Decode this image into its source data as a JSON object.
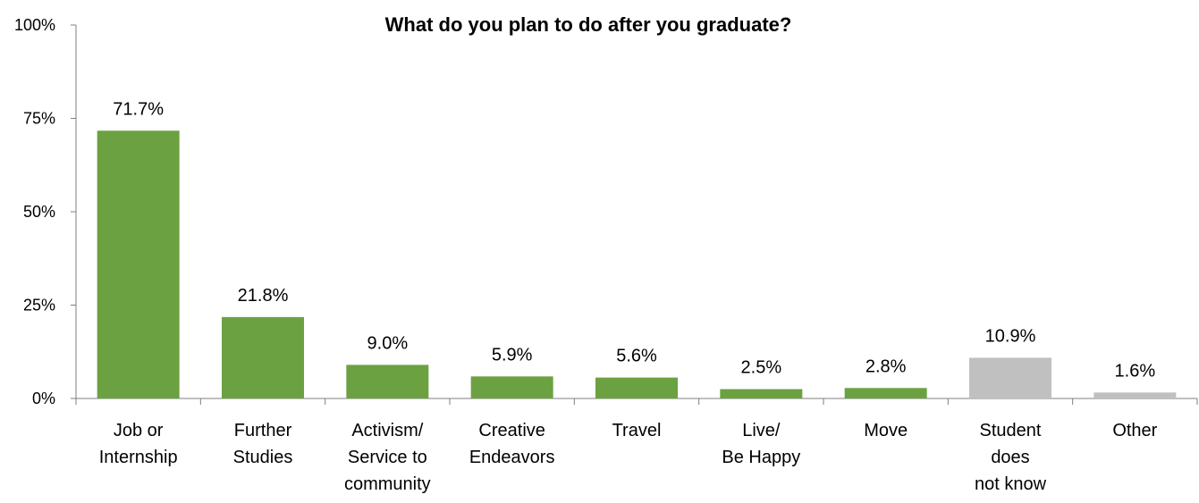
{
  "chart_data": {
    "type": "bar",
    "title": "What do you plan to do after you graduate?",
    "xlabel": "",
    "ylabel": "",
    "ylim": [
      0,
      100
    ],
    "yticks": [
      "0%",
      "25%",
      "50%",
      "75%",
      "100%"
    ],
    "ytick_values": [
      0,
      25,
      50,
      75,
      100
    ],
    "grid": false,
    "legend": "none",
    "colors": {
      "primary": "#6ca142",
      "secondary": "#c0c0c0",
      "axis": "#7f7f7f"
    },
    "categories": [
      [
        "Job or",
        "Internship"
      ],
      [
        "Further",
        "Studies"
      ],
      [
        "Activism/",
        "Service to",
        "community"
      ],
      [
        "Creative",
        "Endeavors"
      ],
      [
        "Travel"
      ],
      [
        "Live/",
        "Be Happy"
      ],
      [
        "Move"
      ],
      [
        "Student",
        "does",
        "not know"
      ],
      [
        "Other"
      ]
    ],
    "values": [
      71.7,
      21.8,
      9.0,
      5.9,
      5.6,
      2.5,
      2.8,
      10.9,
      1.6
    ],
    "value_labels": [
      "71.7%",
      "21.8%",
      "9.0%",
      "5.9%",
      "5.6%",
      "2.5%",
      "2.8%",
      "10.9%",
      "1.6%"
    ],
    "bar_color_keys": [
      "primary",
      "primary",
      "primary",
      "primary",
      "primary",
      "primary",
      "primary",
      "secondary",
      "secondary"
    ]
  }
}
